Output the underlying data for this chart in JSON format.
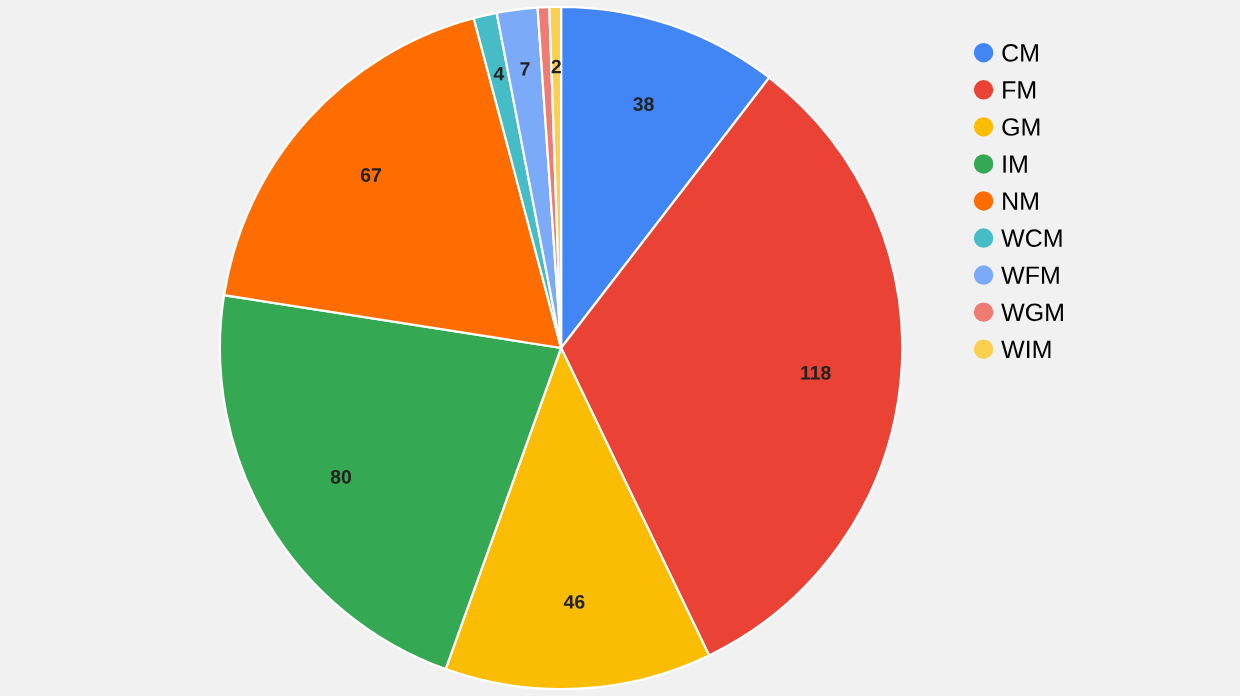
{
  "chart_data": {
    "type": "pie",
    "categories": [
      "CM",
      "FM",
      "GM",
      "IM",
      "NM",
      "WCM",
      "WFM",
      "WGM",
      "WIM"
    ],
    "values": [
      38,
      118,
      46,
      80,
      67,
      4,
      7,
      2,
      2
    ],
    "value_labels": [
      "38",
      "118",
      "46",
      "80",
      "67",
      "4",
      "7",
      null,
      "2"
    ],
    "colors": [
      "#4285f4",
      "#ea4335",
      "#fbbc04",
      "#34a853",
      "#ff6d01",
      "#46bdc6",
      "#7baaf8",
      "#f07b72",
      "#fcd04f"
    ],
    "legend": "right"
  }
}
